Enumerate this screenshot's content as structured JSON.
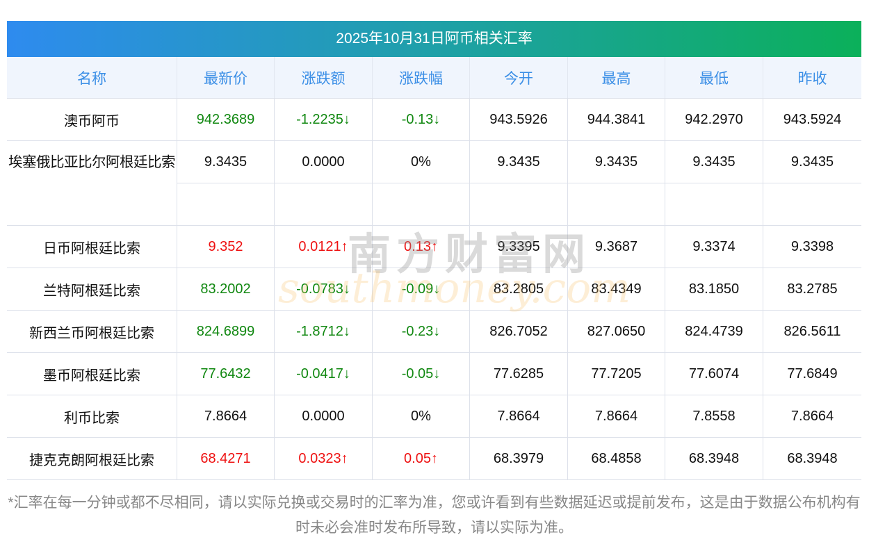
{
  "title": "2025年10月31日阿币相关汇率",
  "headers": [
    "名称",
    "最新价",
    "涨跌额",
    "涨跌幅",
    "今开",
    "最高",
    "最低",
    "昨收"
  ],
  "rows": [
    {
      "name": "澳币阿币",
      "price": "942.3689",
      "chg": "-1.2235↓",
      "pct": "-0.13↓",
      "open": "943.5926",
      "high": "944.3841",
      "low": "942.2970",
      "prev": "943.5924",
      "trend": "down"
    },
    {
      "name": "埃塞俄比亚比尔阿根廷比索",
      "price": "9.3435",
      "chg": "0.0000",
      "pct": "0%",
      "open": "9.3435",
      "high": "9.3435",
      "low": "9.3435",
      "prev": "9.3435",
      "trend": "flat"
    },
    {
      "name": "日币阿根廷比索",
      "price": "9.352",
      "chg": "0.0121↑",
      "pct": "0.13↑",
      "open": "9.3395",
      "high": "9.3687",
      "low": "9.3374",
      "prev": "9.3398",
      "trend": "up"
    },
    {
      "name": "兰特阿根廷比索",
      "price": "83.2002",
      "chg": "-0.0783↓",
      "pct": "-0.09↓",
      "open": "83.2805",
      "high": "83.4349",
      "low": "83.1850",
      "prev": "83.2785",
      "trend": "down"
    },
    {
      "name": "新西兰币阿根廷比索",
      "price": "824.6899",
      "chg": "-1.8712↓",
      "pct": "-0.23↓",
      "open": "826.7052",
      "high": "827.0650",
      "low": "824.4739",
      "prev": "826.5611",
      "trend": "down"
    },
    {
      "name": "墨币阿根廷比索",
      "price": "77.6432",
      "chg": "-0.0417↓",
      "pct": "-0.05↓",
      "open": "77.6285",
      "high": "77.7205",
      "low": "77.6074",
      "prev": "77.6849",
      "trend": "down"
    },
    {
      "name": "利币比索",
      "price": "7.8664",
      "chg": "0.0000",
      "pct": "0%",
      "open": "7.8664",
      "high": "7.8664",
      "low": "7.8558",
      "prev": "7.8664",
      "trend": "flat"
    },
    {
      "name": "捷克克朗阿根廷比索",
      "price": "68.4271",
      "chg": "0.0323↑",
      "pct": "0.05↑",
      "open": "68.3979",
      "high": "68.4858",
      "low": "68.3948",
      "prev": "68.3948",
      "trend": "up"
    }
  ],
  "watermark": {
    "cn": "南方财富网",
    "en": "southmoney.com"
  },
  "footer": "*汇率在每一分钟或都不尽相同，请以实际兑换或交易时的汇率为准，您或许看到有些数据延迟或提前发布，这是由于数据公布机构有时未必会准时发布所导致，请以实际为准。",
  "colors": {
    "up": "#ee1111",
    "down": "#118811",
    "header_text": "#3a8ee6"
  }
}
